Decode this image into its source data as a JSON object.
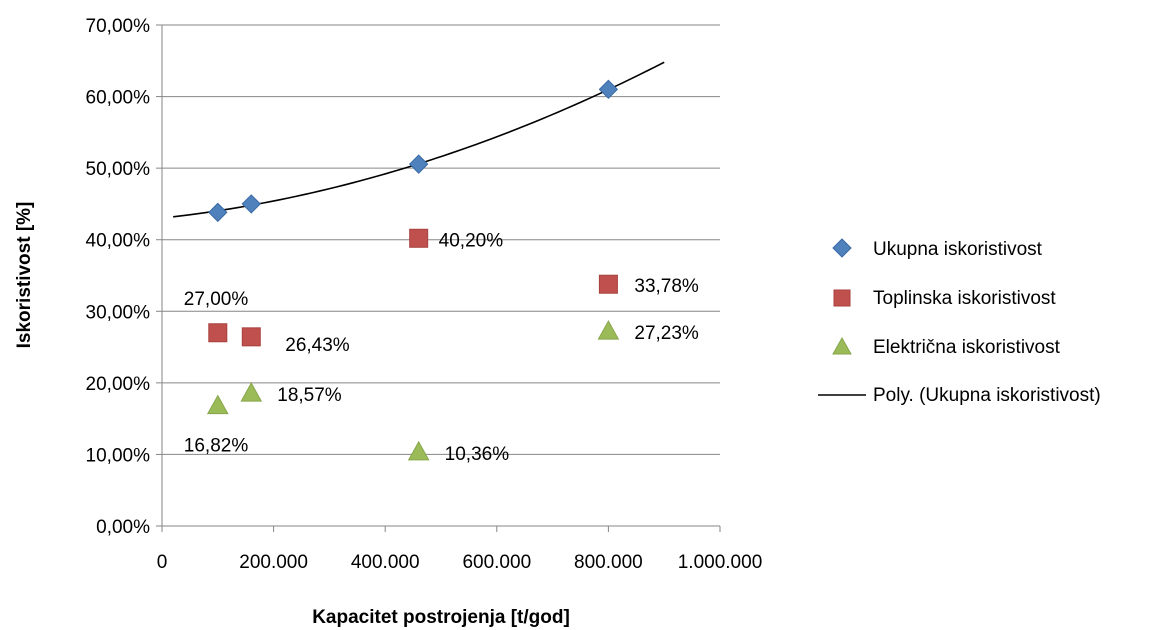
{
  "chart_data": {
    "type": "scatter",
    "xlabel": "Kapacitet postrojenja [t/god]",
    "ylabel": "Iskoristivost [%]",
    "xlim": [
      0,
      1000000
    ],
    "ylim": [
      0,
      0.7
    ],
    "x_ticks": [
      {
        "value": 0,
        "label": "0"
      },
      {
        "value": 200000,
        "label": "200.000"
      },
      {
        "value": 400000,
        "label": "400.000"
      },
      {
        "value": 600000,
        "label": "600.000"
      },
      {
        "value": 800000,
        "label": "800.000"
      },
      {
        "value": 1000000,
        "label": "1.000.000"
      }
    ],
    "y_ticks": [
      {
        "value": 0.0,
        "label": "0,00%"
      },
      {
        "value": 0.1,
        "label": "10,00%"
      },
      {
        "value": 0.2,
        "label": "20,00%"
      },
      {
        "value": 0.3,
        "label": "30,00%"
      },
      {
        "value": 0.4,
        "label": "40,00%"
      },
      {
        "value": 0.5,
        "label": "50,00%"
      },
      {
        "value": 0.6,
        "label": "60,00%"
      },
      {
        "value": 0.7,
        "label": "70,00%"
      }
    ],
    "grid": "horizontal",
    "legend_position": "right",
    "series": [
      {
        "name": "Ukupna iskoristivost",
        "marker": "diamond",
        "color": "#4F81BD",
        "points": [
          {
            "x": 100000,
            "y": 0.4382
          },
          {
            "x": 160000,
            "y": 0.45
          },
          {
            "x": 460000,
            "y": 0.5056
          },
          {
            "x": 800000,
            "y": 0.6101
          }
        ]
      },
      {
        "name": "Toplinska iskoristivost",
        "marker": "square",
        "color": "#C0504D",
        "points": [
          {
            "x": 100000,
            "y": 0.27,
            "label": "27,00%"
          },
          {
            "x": 160000,
            "y": 0.2643,
            "label": "26,43%"
          },
          {
            "x": 460000,
            "y": 0.402,
            "label": "40,20%"
          },
          {
            "x": 800000,
            "y": 0.3378,
            "label": "33,78%"
          }
        ]
      },
      {
        "name": "Električna iskoristivost",
        "marker": "triangle",
        "color": "#9BBB59",
        "points": [
          {
            "x": 100000,
            "y": 0.1682,
            "label": "16,82%"
          },
          {
            "x": 160000,
            "y": 0.1857,
            "label": "18,57%"
          },
          {
            "x": 460000,
            "y": 0.1036,
            "label": "10,36%"
          },
          {
            "x": 800000,
            "y": 0.2723,
            "label": "27,23%"
          }
        ]
      }
    ],
    "trendline": {
      "name": "Poly. (Ukupna iskoristivost)",
      "type": "polynomial",
      "order": 2,
      "color": "#000000",
      "x_range": [
        20000,
        900000
      ],
      "sample_points": [
        {
          "x": 20000,
          "y": 0.431
        },
        {
          "x": 160000,
          "y": 0.45
        },
        {
          "x": 460000,
          "y": 0.505
        },
        {
          "x": 800000,
          "y": 0.61
        },
        {
          "x": 900000,
          "y": 0.648
        }
      ]
    }
  }
}
